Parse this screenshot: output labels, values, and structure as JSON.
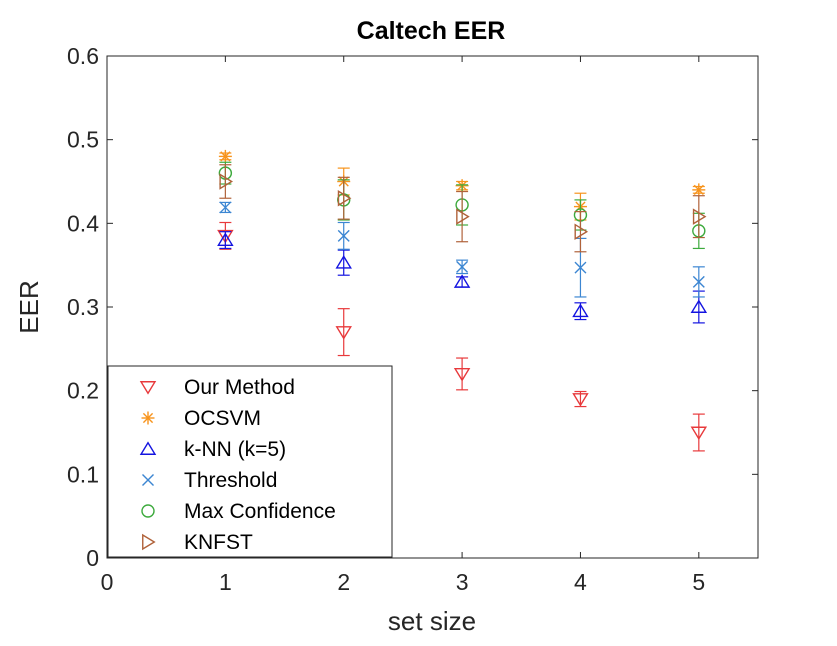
{
  "chart_data": {
    "type": "scatter",
    "title": "Caltech EER",
    "xlabel": "set size",
    "ylabel": "EER",
    "xlim": [
      0,
      5.5
    ],
    "ylim": [
      0,
      0.6
    ],
    "xticks": [
      0,
      1,
      2,
      3,
      4,
      5
    ],
    "yticks": [
      0,
      0.1,
      0.2,
      0.3,
      0.4,
      0.5,
      0.6
    ],
    "xtick_labels": [
      "0",
      "1",
      "2",
      "3",
      "4",
      "5"
    ],
    "ytick_labels": [
      "0",
      "0.1",
      "0.2",
      "0.3",
      "0.4",
      "0.5",
      "0.6"
    ],
    "legend_position": "bottom-left",
    "x": [
      1,
      2,
      3,
      4,
      5
    ],
    "series": [
      {
        "name": "Our Method",
        "marker": "triangle-down",
        "color": "#E8393B",
        "values": [
          0.385,
          0.27,
          0.22,
          0.19,
          0.15
        ],
        "err": [
          0.016,
          0.028,
          0.019,
          0.009,
          0.022
        ]
      },
      {
        "name": "OCSVM",
        "marker": "asterisk",
        "color": "#F7941D",
        "values": [
          0.48,
          0.45,
          0.445,
          0.42,
          0.44
        ],
        "err": [
          0.004,
          0.016,
          0.005,
          0.016,
          0.004
        ]
      },
      {
        "name": "k-NN (k=5)",
        "marker": "triangle-up",
        "color": "#1414E0",
        "values": [
          0.38,
          0.353,
          0.33,
          0.295,
          0.3
        ],
        "err": [
          0.01,
          0.015,
          0.006,
          0.01,
          0.019
        ]
      },
      {
        "name": "Threshold",
        "marker": "x",
        "color": "#3C86D2",
        "values": [
          0.419,
          0.385,
          0.348,
          0.347,
          0.33
        ],
        "err": [
          0.006,
          0.016,
          0.008,
          0.035,
          0.018
        ]
      },
      {
        "name": "Max Confidence",
        "marker": "circle",
        "color": "#3DAA3D",
        "values": [
          0.46,
          0.428,
          0.422,
          0.41,
          0.391
        ],
        "err": [
          0.013,
          0.024,
          0.024,
          0.018,
          0.021
        ]
      },
      {
        "name": "KNFST",
        "marker": "triangle-right",
        "color": "#B0623A",
        "values": [
          0.45,
          0.43,
          0.408,
          0.39,
          0.408
        ],
        "err": [
          0.02,
          0.025,
          0.03,
          0.024,
          0.025
        ]
      }
    ]
  }
}
